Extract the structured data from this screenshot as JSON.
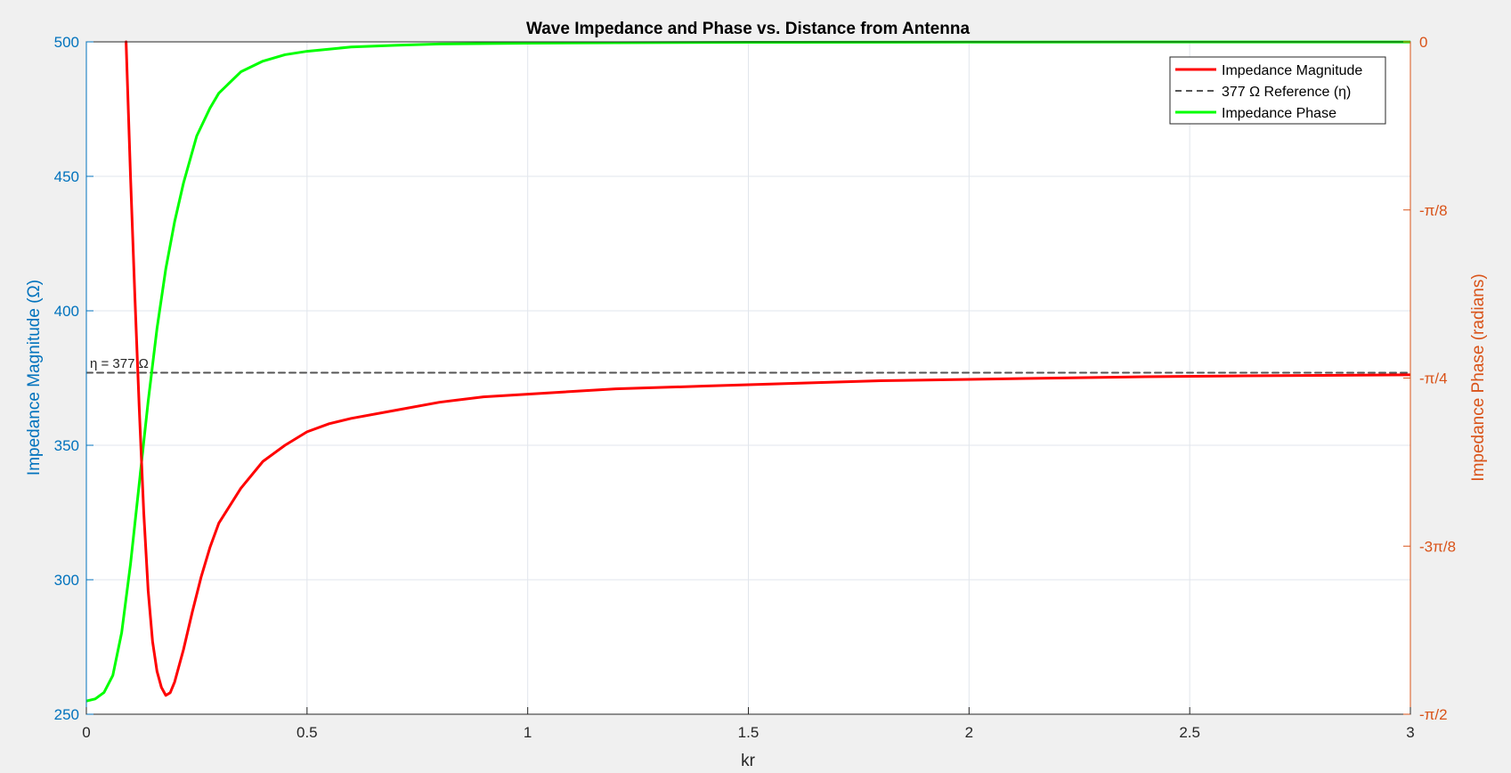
{
  "chart_data": {
    "type": "line",
    "title": "Wave Impedance and Phase vs. Distance from Antenna",
    "xlabel": "kr",
    "ylabel_left": "Impedance Magnitude (Ω)",
    "ylabel_right": "Impedance Phase (radians)",
    "xlim": [
      0,
      3
    ],
    "ylim_left": [
      250,
      500
    ],
    "ylim_right": [
      -1.5708,
      0
    ],
    "x_ticks": [
      0,
      0.5,
      1,
      1.5,
      2,
      2.5,
      3
    ],
    "x_tick_labels": [
      "0",
      "0.5",
      "1",
      "1.5",
      "2",
      "2.5",
      "3"
    ],
    "y_left_ticks": [
      250,
      300,
      350,
      400,
      450,
      500
    ],
    "y_left_tick_labels": [
      "250",
      "300",
      "350",
      "400",
      "450",
      "500"
    ],
    "y_right_ticks": [
      -1.5708,
      -1.1781,
      -0.7854,
      -0.3927,
      0
    ],
    "y_right_tick_labels": [
      "-π/2",
      "-3π/8",
      "-π/4",
      "-π/8",
      "0"
    ],
    "grid": true,
    "legend_position": "top-right",
    "colors": {
      "left_axis": "#0072BD",
      "right_axis": "#D95319",
      "magnitude": "#FF0000",
      "reference": "#555555",
      "phase": "#00FF00"
    },
    "annotation": {
      "text": "η = 377 Ω",
      "x": 0.01,
      "y": 377
    },
    "series": [
      {
        "name": "Impedance Magnitude",
        "axis": "left",
        "style": "solid",
        "x": [
          0.09,
          0.1,
          0.11,
          0.12,
          0.13,
          0.14,
          0.15,
          0.16,
          0.17,
          0.18,
          0.19,
          0.2,
          0.22,
          0.24,
          0.26,
          0.28,
          0.3,
          0.35,
          0.4,
          0.45,
          0.5,
          0.55,
          0.6,
          0.7,
          0.8,
          0.9,
          1.0,
          1.2,
          1.4,
          1.6,
          1.8,
          2.0,
          2.2,
          2.4,
          2.6,
          2.8,
          3.0
        ],
        "y": [
          500,
          450,
          405,
          363,
          325,
          296,
          277,
          266,
          260,
          257,
          258,
          262,
          274,
          288,
          301,
          312,
          321,
          334,
          344,
          350,
          355,
          358,
          360,
          363,
          366,
          368,
          369,
          371,
          372,
          373,
          374,
          374.5,
          375,
          375.5,
          375.8,
          376,
          376.2
        ]
      },
      {
        "name": "377 Ω Reference (η)",
        "axis": "left",
        "style": "dashed",
        "x": [
          0,
          3
        ],
        "y": [
          377,
          377
        ]
      },
      {
        "name": "Impedance Phase",
        "axis": "right",
        "style": "solid",
        "x": [
          0,
          0.02,
          0.04,
          0.06,
          0.08,
          0.1,
          0.12,
          0.14,
          0.16,
          0.18,
          0.2,
          0.22,
          0.25,
          0.28,
          0.3,
          0.35,
          0.4,
          0.45,
          0.5,
          0.6,
          0.7,
          0.8,
          1.0,
          1.2,
          1.5,
          2.0,
          2.5,
          3.0
        ],
        "y": [
          -1.54,
          -1.535,
          -1.52,
          -1.48,
          -1.38,
          -1.22,
          -1.03,
          -0.84,
          -0.67,
          -0.53,
          -0.42,
          -0.33,
          -0.22,
          -0.155,
          -0.12,
          -0.07,
          -0.045,
          -0.03,
          -0.022,
          -0.012,
          -0.008,
          -0.005,
          -0.003,
          -0.002,
          -0.001,
          -0.0006,
          -0.0003,
          -0.0002
        ]
      }
    ]
  }
}
